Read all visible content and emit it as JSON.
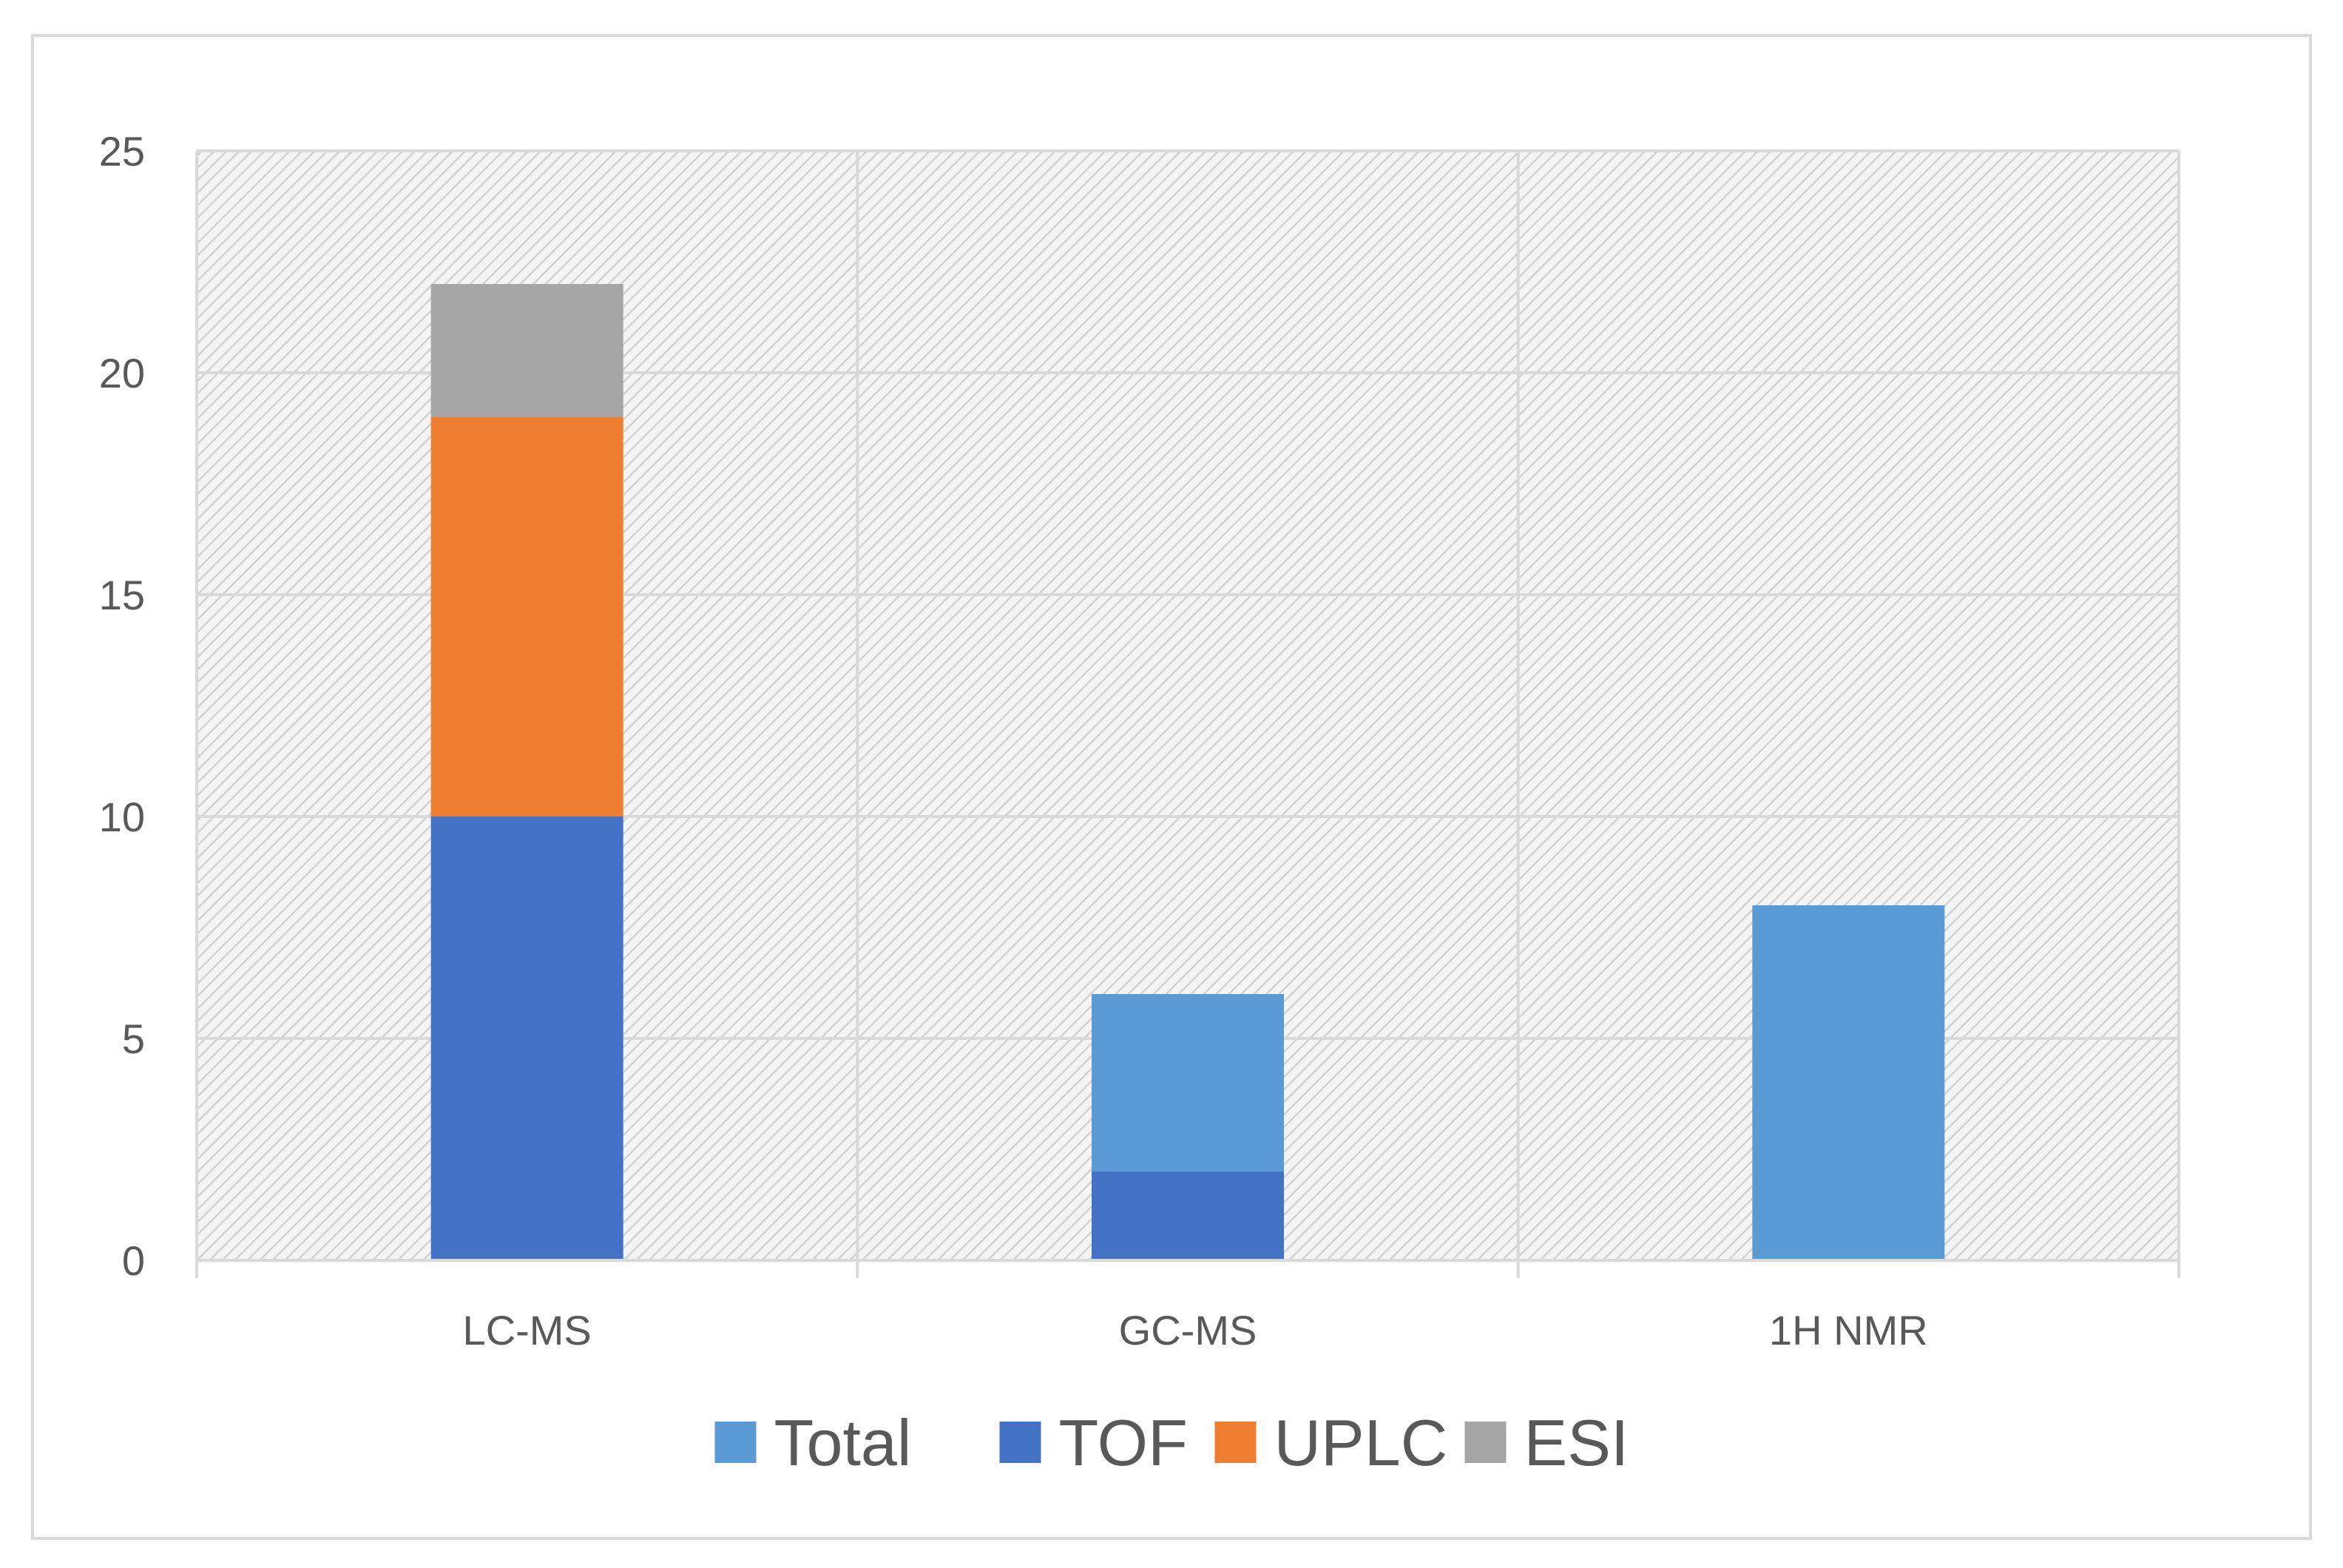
{
  "chart_data": {
    "type": "bar",
    "stacked": true,
    "categories": [
      "LC-MS",
      "GC-MS",
      "1H NMR"
    ],
    "series": [
      {
        "name": "Total",
        "color": "#5b9bd5",
        "values": [
          0,
          4,
          8
        ]
      },
      {
        "name": "TOF",
        "color": "#4472c4",
        "values": [
          10,
          2,
          0
        ]
      },
      {
        "name": "UPLC",
        "color": "#ed7d31",
        "values": [
          9,
          0,
          0
        ]
      },
      {
        "name": "ESI",
        "color": "#a5a5a5",
        "values": [
          3,
          0,
          0
        ]
      }
    ],
    "stack_order": [
      "TOF",
      "Total",
      "UPLC",
      "ESI"
    ],
    "ylim": [
      0,
      25
    ],
    "yticks": [
      0,
      5,
      10,
      15,
      20,
      25
    ],
    "title": "",
    "xlabel": "",
    "ylabel": "",
    "grid": true,
    "plot_background": "diagonal-hatch",
    "legend_position": "bottom"
  }
}
